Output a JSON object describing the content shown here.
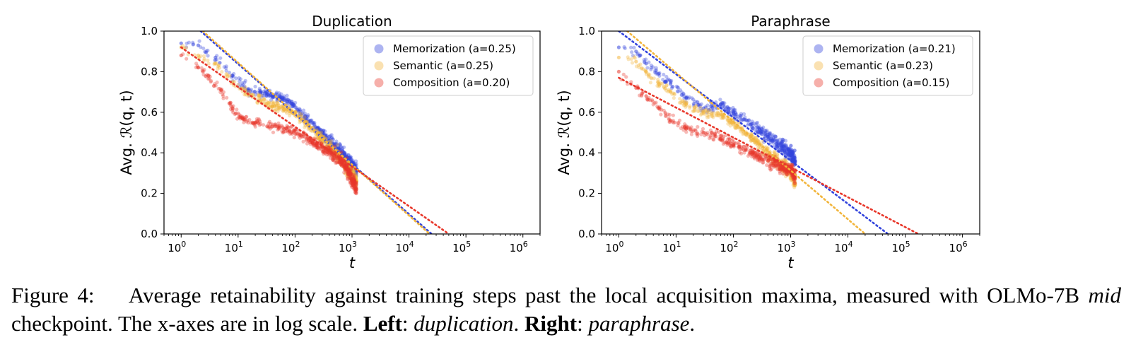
{
  "chart_data": [
    {
      "type": "scatter",
      "title": "Duplication",
      "xlabel": "t",
      "ylabel": "Avg. ℛ(q, t)",
      "xscale": "log",
      "xlim": [
        0.5,
        2000000
      ],
      "ylim": [
        0.0,
        1.0
      ],
      "x_ticks": [
        {
          "base": "10",
          "exp": "0",
          "value": 1
        },
        {
          "base": "10",
          "exp": "1",
          "value": 10
        },
        {
          "base": "10",
          "exp": "2",
          "value": 100
        },
        {
          "base": "10",
          "exp": "3",
          "value": 1000
        },
        {
          "base": "10",
          "exp": "4",
          "value": 10000
        },
        {
          "base": "10",
          "exp": "5",
          "value": 100000
        },
        {
          "base": "10",
          "exp": "6",
          "value": 1000000
        }
      ],
      "y_ticks": [
        "0.0",
        "0.2",
        "0.4",
        "0.6",
        "0.8",
        "1.0"
      ],
      "grid": false,
      "legend_position": "top-right",
      "series": [
        {
          "name": "Memorization (a=0.25)",
          "color": "#3344dd",
          "fit_line": {
            "x": [
              2.2,
              25000
            ],
            "y": [
              1.0,
              0.0
            ]
          },
          "points": [
            [
              1.0,
              0.94
            ],
            [
              2.0,
              0.93
            ],
            [
              4.0,
              0.87
            ],
            [
              8.0,
              0.78
            ],
            [
              15.0,
              0.71
            ],
            [
              25.0,
              0.7
            ],
            [
              40.0,
              0.68
            ],
            [
              60.0,
              0.67
            ],
            [
              90.0,
              0.64
            ],
            [
              150.0,
              0.58
            ],
            [
              250.0,
              0.52
            ],
            [
              400.0,
              0.46
            ],
            [
              600.0,
              0.41
            ],
            [
              800.0,
              0.37
            ],
            [
              1000.0,
              0.34
            ],
            [
              1200.0,
              0.31
            ]
          ]
        },
        {
          "name": "Semantic (a=0.25)",
          "color": "#f2b53c",
          "fit_line": {
            "x": [
              2.4,
              23000
            ],
            "y": [
              1.0,
              0.0
            ]
          },
          "points": [
            [
              1.0,
              0.92
            ],
            [
              2.0,
              0.88
            ],
            [
              4.0,
              0.84
            ],
            [
              8.0,
              0.75
            ],
            [
              15.0,
              0.69
            ],
            [
              25.0,
              0.66
            ],
            [
              40.0,
              0.63
            ],
            [
              60.0,
              0.62
            ],
            [
              90.0,
              0.6
            ],
            [
              150.0,
              0.55
            ],
            [
              250.0,
              0.49
            ],
            [
              400.0,
              0.43
            ],
            [
              600.0,
              0.38
            ],
            [
              800.0,
              0.33
            ],
            [
              1000.0,
              0.3
            ],
            [
              1200.0,
              0.26
            ]
          ]
        },
        {
          "name": "Composition (a=0.20)",
          "color": "#e8372a",
          "fit_line": {
            "x": [
              1.0,
              50000
            ],
            "y": [
              0.92,
              0.0
            ]
          },
          "points": [
            [
              1.0,
              0.88
            ],
            [
              2.0,
              0.82
            ],
            [
              3.0,
              0.78
            ],
            [
              5.0,
              0.71
            ],
            [
              8.0,
              0.62
            ],
            [
              12.0,
              0.57
            ],
            [
              20.0,
              0.55
            ],
            [
              40.0,
              0.53
            ],
            [
              70.0,
              0.52
            ],
            [
              120.0,
              0.49
            ],
            [
              200.0,
              0.45
            ],
            [
              350.0,
              0.42
            ],
            [
              600.0,
              0.37
            ],
            [
              800.0,
              0.33
            ],
            [
              1000.0,
              0.27
            ],
            [
              1200.0,
              0.22
            ]
          ]
        }
      ]
    },
    {
      "type": "scatter",
      "title": "Paraphrase",
      "xlabel": "t",
      "ylabel": "Avg. ℛ(q, t)",
      "xscale": "log",
      "xlim": [
        0.5,
        2000000
      ],
      "ylim": [
        0.0,
        1.0
      ],
      "x_ticks": [
        {
          "base": "10",
          "exp": "0",
          "value": 1
        },
        {
          "base": "10",
          "exp": "1",
          "value": 10
        },
        {
          "base": "10",
          "exp": "2",
          "value": 100
        },
        {
          "base": "10",
          "exp": "3",
          "value": 1000
        },
        {
          "base": "10",
          "exp": "4",
          "value": 10000
        },
        {
          "base": "10",
          "exp": "5",
          "value": 100000
        },
        {
          "base": "10",
          "exp": "6",
          "value": 1000000
        }
      ],
      "y_ticks": [
        "0.0",
        "0.2",
        "0.4",
        "0.6",
        "0.8",
        "1.0"
      ],
      "grid": false,
      "legend_position": "top-right",
      "series": [
        {
          "name": "Memorization (a=0.21)",
          "color": "#3344dd",
          "fit_line": {
            "x": [
              1.0,
              50000
            ],
            "y": [
              1.0,
              0.0
            ]
          },
          "points": [
            [
              1.0,
              0.92
            ],
            [
              2.0,
              0.9
            ],
            [
              3.0,
              0.84
            ],
            [
              5.0,
              0.79
            ],
            [
              8.0,
              0.74
            ],
            [
              15.0,
              0.67
            ],
            [
              30.0,
              0.62
            ],
            [
              60.0,
              0.64
            ],
            [
              100.0,
              0.6
            ],
            [
              200.0,
              0.54
            ],
            [
              400.0,
              0.48
            ],
            [
              700.0,
              0.43
            ],
            [
              1000.0,
              0.4
            ],
            [
              1200.0,
              0.36
            ]
          ]
        },
        {
          "name": "Semantic (a=0.23)",
          "color": "#f2b53c",
          "fit_line": {
            "x": [
              1.4,
              20000
            ],
            "y": [
              1.0,
              0.0
            ]
          },
          "points": [
            [
              1.0,
              0.87
            ],
            [
              2.0,
              0.85
            ],
            [
              3.0,
              0.8
            ],
            [
              5.0,
              0.74
            ],
            [
              8.0,
              0.7
            ],
            [
              15.0,
              0.64
            ],
            [
              30.0,
              0.6
            ],
            [
              60.0,
              0.59
            ],
            [
              100.0,
              0.55
            ],
            [
              200.0,
              0.48
            ],
            [
              400.0,
              0.4
            ],
            [
              700.0,
              0.34
            ],
            [
              1000.0,
              0.31
            ],
            [
              1200.0,
              0.25
            ]
          ]
        },
        {
          "name": "Composition (a=0.15)",
          "color": "#e8372a",
          "fit_line": {
            "x": [
              1.0,
              170000
            ],
            "y": [
              0.77,
              0.0
            ]
          },
          "points": [
            [
              1.0,
              0.8
            ],
            [
              2.0,
              0.72
            ],
            [
              3.0,
              0.68
            ],
            [
              5.0,
              0.62
            ],
            [
              8.0,
              0.56
            ],
            [
              15.0,
              0.52
            ],
            [
              30.0,
              0.5
            ],
            [
              60.0,
              0.47
            ],
            [
              100.0,
              0.44
            ],
            [
              200.0,
              0.4
            ],
            [
              400.0,
              0.36
            ],
            [
              700.0,
              0.33
            ],
            [
              1000.0,
              0.31
            ],
            [
              1200.0,
              0.29
            ]
          ]
        }
      ]
    }
  ],
  "caption": {
    "label": "Figure 4:",
    "text1": "Average retainability against training steps past the local acquisition maxima, measured with OLMo-7B",
    "mid": "mid",
    "text2": "checkpoint. The x-axes are in log scale.",
    "left_label": "Left",
    "left_value": "duplication",
    "right_label": "Right",
    "right_value": "paraphrase"
  }
}
